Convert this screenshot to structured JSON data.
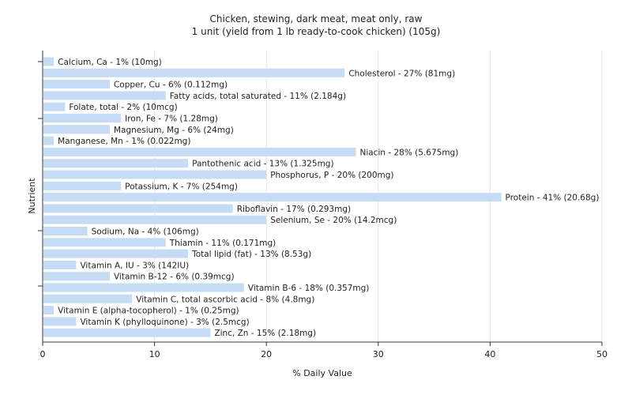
{
  "chart_data": {
    "type": "bar",
    "orientation": "horizontal",
    "title": "Chicken, stewing, dark meat, meat only, raw",
    "subtitle": "1 unit (yield from 1 lb ready-to-cook chicken) (105g)",
    "xlabel": "% Daily Value",
    "ylabel": "Nutrient",
    "xlim": [
      0,
      50
    ],
    "xticks": [
      "0",
      "10",
      "20",
      "30",
      "40",
      "50"
    ],
    "grid": true,
    "bar_color": "#c6dcf5",
    "grid_color": "#e6e6e6",
    "categories": [
      "Calcium, Ca",
      "Cholesterol",
      "Copper, Cu",
      "Fatty acids, total saturated",
      "Folate, total",
      "Iron, Fe",
      "Magnesium, Mg",
      "Manganese, Mn",
      "Niacin",
      "Pantothenic acid",
      "Phosphorus, P",
      "Potassium, K",
      "Protein",
      "Riboflavin",
      "Selenium, Se",
      "Sodium, Na",
      "Thiamin",
      "Total lipid (fat)",
      "Vitamin A, IU",
      "Vitamin B-12",
      "Vitamin B-6",
      "Vitamin C, total ascorbic acid",
      "Vitamin E (alpha-tocopherol)",
      "Vitamin K (phylloquinone)",
      "Zinc, Zn"
    ],
    "values": [
      1,
      27,
      6,
      11,
      2,
      7,
      6,
      1,
      28,
      13,
      20,
      7,
      41,
      17,
      20,
      4,
      11,
      13,
      3,
      6,
      18,
      8,
      1,
      3,
      15
    ],
    "labels": [
      "Calcium, Ca - 1% (10mg)",
      "Cholesterol - 27% (81mg)",
      "Copper, Cu - 6% (0.112mg)",
      "Fatty acids, total saturated - 11% (2.184g)",
      "Folate, total - 2% (10mcg)",
      "Iron, Fe - 7% (1.28mg)",
      "Magnesium, Mg - 6% (24mg)",
      "Manganese, Mn - 1% (0.022mg)",
      "Niacin - 28% (5.675mg)",
      "Pantothenic acid - 13% (1.325mg)",
      "Phosphorus, P - 20% (200mg)",
      "Potassium, K - 7% (254mg)",
      "Protein - 41% (20.68g)",
      "Riboflavin - 17% (0.293mg)",
      "Selenium, Se - 20% (14.2mcg)",
      "Sodium, Na - 4% (106mg)",
      "Thiamin - 11% (0.171mg)",
      "Total lipid (fat) - 13% (8.53g)",
      "Vitamin A, IU - 3% (142IU)",
      "Vitamin B-12 - 6% (0.39mcg)",
      "Vitamin B-6 - 18% (0.357mg)",
      "Vitamin C, total ascorbic acid - 8% (4.8mg)",
      "Vitamin E (alpha-tocopherol) - 1% (0.25mg)",
      "Vitamin K (phylloquinone) - 3% (2.5mcg)",
      "Zinc, Zn - 15% (2.18mg)"
    ]
  }
}
